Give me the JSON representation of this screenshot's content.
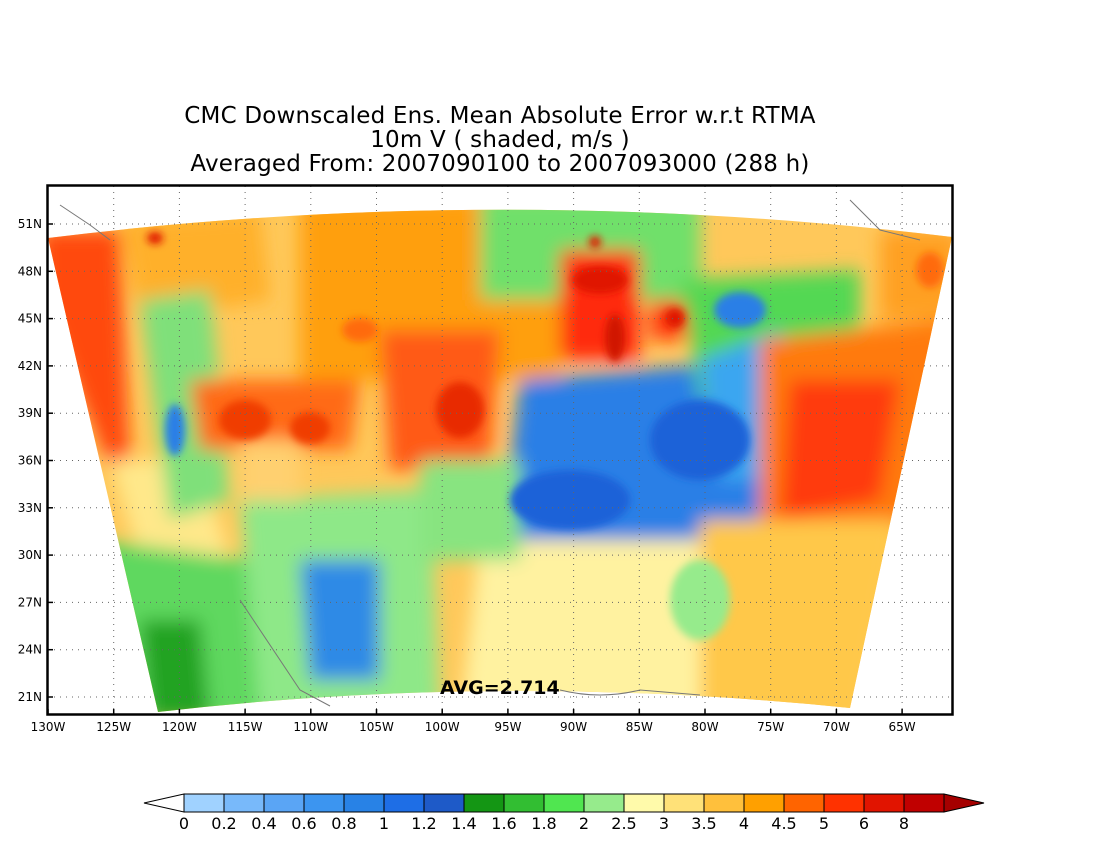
{
  "title": {
    "line1": "CMC Downscaled Ens. Mean Absolute Error w.r.t RTMA",
    "line2": "10m V ( shaded, m/s )",
    "line3": "Averaged From: 2007090100 to 2007093000 (288 h)"
  },
  "avg_label": "AVG=2.714",
  "lat_labels": [
    "51N",
    "48N",
    "45N",
    "42N",
    "39N",
    "36N",
    "33N",
    "30N",
    "27N",
    "24N",
    "21N"
  ],
  "lon_labels": [
    "130W",
    "125W",
    "120W",
    "115W",
    "110W",
    "105W",
    "100W",
    "95W",
    "90W",
    "85W",
    "80W",
    "75W",
    "70W",
    "65W"
  ],
  "colorbar": {
    "labels": [
      "0",
      "0.2",
      "0.4",
      "0.6",
      "0.8",
      "1",
      "1.2",
      "1.4",
      "1.6",
      "1.8",
      "2",
      "2.5",
      "3",
      "3.5",
      "4",
      "4.5",
      "5",
      "6",
      "8"
    ],
    "colors": [
      "#a0d2ff",
      "#78b9fa",
      "#5aa5f5",
      "#3c95f0",
      "#2882e6",
      "#1e6ee6",
      "#1e5ac8",
      "#149614",
      "#32be32",
      "#50e650",
      "#96eb8c",
      "#fffaaa",
      "#ffe178",
      "#ffc03c",
      "#ffa000",
      "#ff6400",
      "#ff3200",
      "#e11400",
      "#c00000"
    ],
    "under_color": "#ffffff",
    "over_color": "#a50000"
  }
}
